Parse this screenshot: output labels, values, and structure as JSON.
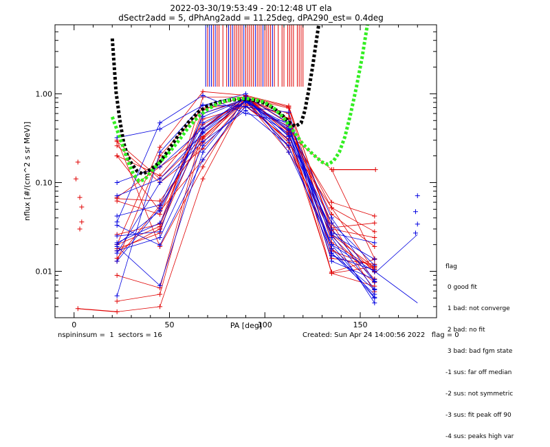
{
  "title": {
    "line1": "2022-03-30/19:53:49 - 20:12:48 UT ela",
    "line2": "dSectr2add = 5, dPhAng2add = 11.25deg, dPA290_est=    0.4deg"
  },
  "footer": {
    "left": "nspininsum =  1  sectors = 16",
    "right": "Created: Sun Apr 24 14:00:56 2022   flag = 0"
  },
  "flag_legend": {
    "title": "flag",
    "items": [
      " 0 good fit",
      " 1 bad: not converge",
      " 2 bad: no fit",
      " 3 bad: bad fgm state",
      "-1 sus: far off median",
      "-2 sus: not symmetric",
      "-3 sus: fit peak off 90",
      "-4 sus: peaks high var"
    ]
  },
  "colors": {
    "red": "#e00000",
    "blue": "#0000e0",
    "black": "#000000",
    "green": "#33ee22"
  },
  "chart_data": {
    "type": "line",
    "xlabel": "PA [deg]",
    "ylabel": "nflux [#/(cm^2 s sr MeV)]",
    "xlim": [
      -10,
      190
    ],
    "ylim": [
      0.003,
      6
    ],
    "yscale": "log",
    "xticks": [
      0,
      50,
      100,
      150
    ],
    "xtick_labels": [
      "0",
      "50",
      "100",
      "150"
    ],
    "yticks": [
      0.01,
      0.1,
      1.0
    ],
    "ytick_labels": [
      "0.01",
      "0.10",
      "1.00"
    ],
    "pa_grid": [
      22.5,
      45,
      67.5,
      90,
      112.5,
      135,
      157.5
    ],
    "series_red": [
      [
        0.29,
        0.11,
        0.32,
        0.93,
        0.35,
        0.14,
        0.0139
      ],
      [
        0.3,
        0.019,
        0.15,
        0.96,
        0.37,
        0.0095,
        0.0113
      ],
      [
        0.066,
        0.062,
        0.28,
        0.94,
        0.46,
        0.035,
        0.0059
      ],
      [
        0.2,
        0.12,
        0.45,
        0.83,
        0.28,
        0.052,
        0.028
      ],
      [
        0.26,
        0.1,
        0.24,
        0.85,
        0.4,
        0.044,
        0.019
      ],
      [
        0.014,
        0.055,
        0.31,
        0.83,
        0.22,
        0.03,
        0.024
      ],
      [
        0.0035,
        0.004,
        0.11,
        0.9,
        0.38,
        0.06,
        0.042
      ],
      [
        0.0046,
        0.0055,
        0.33,
        0.87,
        0.25,
        0.026,
        0.011
      ],
      [
        0.009,
        0.0065,
        0.4,
        0.9,
        0.69,
        0.021,
        0.0106
      ],
      [
        0.02,
        0.032,
        0.6,
        0.86,
        0.53,
        0.017,
        0.0113
      ],
      [
        0.017,
        0.03,
        0.4,
        0.95,
        0.35,
        0.014,
        0.012
      ],
      [
        0.026,
        0.034,
        0.66,
        0.94,
        0.71,
        0.031,
        0.035
      ],
      [
        0.018,
        0.027,
        0.92,
        0.92,
        0.52,
        0.025,
        0.0082
      ],
      [
        0.062,
        0.044,
        0.52,
        0.72,
        0.31,
        0.0098,
        0.0136
      ],
      [
        0.013,
        0.2,
        0.69,
        0.77,
        0.43,
        0.052,
        0.01
      ],
      [
        0.02,
        0.25,
        1.06,
        0.96,
        0.73,
        0.029,
        0.0098
      ],
      [
        0.068,
        0.15,
        0.33,
        0.85,
        0.6,
        0.0095,
        0.0068
      ],
      [
        0.2,
        0.048,
        0.18,
        0.74,
        0.3,
        0.018,
        0.0075
      ]
    ],
    "series_blue": [
      [
        0.019,
        0.0069,
        0.22,
        0.86,
        0.34,
        0.02,
        0.0099
      ],
      [
        0.033,
        0.0197,
        0.18,
        0.8,
        0.45,
        0.018,
        0.005
      ],
      [
        0.016,
        0.1,
        0.29,
        0.65,
        0.26,
        0.016,
        0.0062
      ],
      [
        0.036,
        0.47,
        0.96,
        0.6,
        0.48,
        0.04,
        0.0077
      ],
      [
        0.042,
        0.056,
        0.55,
        0.87,
        0.4,
        0.026,
        0.0063
      ],
      [
        0.02,
        0.048,
        0.47,
        0.82,
        0.39,
        0.026,
        0.0137
      ],
      [
        0.013,
        0.052,
        0.4,
        0.83,
        0.42,
        0.027,
        0.021
      ],
      [
        0.021,
        0.035,
        0.37,
        0.9,
        0.33,
        0.035,
        0.0117
      ],
      [
        0.025,
        0.028,
        0.6,
        0.88,
        0.3,
        0.03,
        0.0076
      ],
      [
        0.1,
        0.15,
        0.41,
        0.94,
        0.47,
        0.013,
        0.0081
      ],
      [
        0.071,
        0.11,
        0.36,
        0.82,
        0.26,
        0.016,
        0.0055
      ],
      [
        0.017,
        0.024,
        0.26,
        0.71,
        0.62,
        0.015,
        0.0103
      ],
      [
        0.0053,
        0.22,
        0.75,
        0.72,
        0.36,
        0.024,
        0.0044
      ],
      [
        0.32,
        0.4,
        0.74,
        1.0,
        0.22,
        0.02,
        0.0051
      ]
    ],
    "red_markers": [
      [
        2,
        0.17
      ],
      [
        1,
        0.11
      ],
      [
        3,
        0.068
      ],
      [
        4,
        0.053
      ],
      [
        3,
        0.03
      ],
      [
        4,
        0.036
      ],
      [
        2,
        0.0038
      ],
      [
        136,
        0.14
      ],
      [
        158,
        0.14
      ]
    ],
    "red_lines": [
      [
        [
          2,
          0.0038
        ],
        [
          22.5,
          0.0035
        ]
      ],
      [
        [
          135,
          0.14
        ],
        [
          158,
          0.14
        ]
      ]
    ],
    "blue_markers": [
      [
        180,
        0.071
      ],
      [
        179,
        0.047
      ],
      [
        180,
        0.034
      ],
      [
        179,
        0.027
      ]
    ],
    "blue_lines": [
      [
        [
          157.5,
          0.0095
        ],
        [
          180,
          0.026
        ]
      ],
      [
        [
          157.5,
          0.01
        ],
        [
          180,
          0.0044
        ]
      ]
    ],
    "red_vlines": [
      70,
      73,
      75,
      76,
      78,
      80,
      82,
      84,
      85,
      86,
      87,
      88,
      90,
      91,
      92,
      93,
      94,
      96,
      97,
      98,
      100,
      101,
      102,
      103,
      105,
      107,
      109,
      110,
      112,
      113,
      114,
      115,
      117,
      118,
      119,
      120
    ],
    "blue_vlines": [
      69,
      71,
      72,
      74,
      81,
      83,
      89,
      95,
      99,
      104
    ],
    "black_fit": [
      [
        20,
        4.2
      ],
      [
        22,
        1.05
      ],
      [
        24,
        0.5
      ],
      [
        26,
        0.28
      ],
      [
        28,
        0.2
      ],
      [
        30,
        0.165
      ],
      [
        33,
        0.135
      ],
      [
        36,
        0.125
      ],
      [
        40,
        0.14
      ],
      [
        45,
        0.17
      ],
      [
        50,
        0.24
      ],
      [
        55,
        0.35
      ],
      [
        60,
        0.48
      ],
      [
        65,
        0.62
      ],
      [
        70,
        0.73
      ],
      [
        75,
        0.8
      ],
      [
        80,
        0.84
      ],
      [
        85,
        0.86
      ],
      [
        90,
        0.87
      ],
      [
        95,
        0.84
      ],
      [
        100,
        0.78
      ],
      [
        105,
        0.68
      ],
      [
        110,
        0.55
      ],
      [
        113,
        0.47
      ],
      [
        116,
        0.43
      ],
      [
        119,
        0.47
      ],
      [
        121,
        0.65
      ],
      [
        123,
        1.1
      ],
      [
        125,
        2.0
      ],
      [
        127,
        4.0
      ],
      [
        128.5,
        6.5
      ]
    ],
    "green_fit": [
      [
        20,
        0.55
      ],
      [
        22,
        0.42
      ],
      [
        25,
        0.28
      ],
      [
        28,
        0.18
      ],
      [
        31,
        0.125
      ],
      [
        34,
        0.104
      ],
      [
        37,
        0.108
      ],
      [
        40,
        0.13
      ],
      [
        45,
        0.17
      ],
      [
        50,
        0.22
      ],
      [
        55,
        0.3
      ],
      [
        60,
        0.42
      ],
      [
        65,
        0.55
      ],
      [
        70,
        0.67
      ],
      [
        75,
        0.77
      ],
      [
        80,
        0.84
      ],
      [
        85,
        0.88
      ],
      [
        90,
        0.89
      ],
      [
        95,
        0.86
      ],
      [
        100,
        0.8
      ],
      [
        105,
        0.68
      ],
      [
        110,
        0.53
      ],
      [
        115,
        0.38
      ],
      [
        120,
        0.27
      ],
      [
        125,
        0.21
      ],
      [
        130,
        0.17
      ],
      [
        133,
        0.16
      ],
      [
        136,
        0.175
      ],
      [
        139,
        0.22
      ],
      [
        142,
        0.33
      ],
      [
        145,
        0.6
      ],
      [
        148,
        1.2
      ],
      [
        151,
        2.6
      ],
      [
        154,
        6.5
      ]
    ]
  }
}
